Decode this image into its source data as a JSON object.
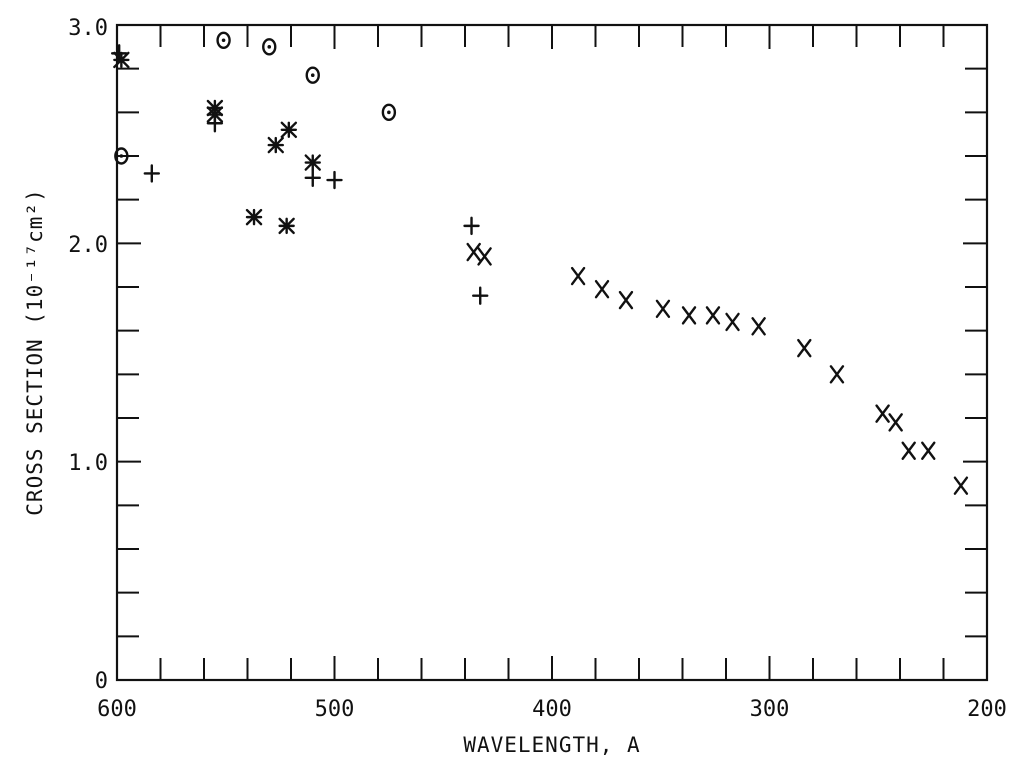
{
  "chart_data": {
    "type": "scatter",
    "title": "",
    "xlabel": "WAVELENGTH, A",
    "ylabel": "CROSS SECTION (10⁻¹⁷cm²)",
    "xlim": [
      600,
      200
    ],
    "ylim": [
      0,
      3.0
    ],
    "x_reversed": true,
    "grid": false,
    "x_major_ticks": [
      600,
      500,
      400,
      300,
      200
    ],
    "x_tick_labels": [
      "600",
      "500",
      "400",
      "300",
      "200"
    ],
    "x_minor_step": 20,
    "y_major_ticks": [
      0,
      1.0,
      2.0,
      3.0
    ],
    "y_tick_labels": [
      "0",
      "1.0",
      "2.0",
      "3.0"
    ],
    "y_minor_step": 0.2,
    "series": [
      {
        "marker": "circle-dot",
        "points": [
          [
            598,
            2.4
          ],
          [
            551,
            2.93
          ],
          [
            530,
            2.9
          ],
          [
            510,
            2.77
          ],
          [
            475,
            2.6
          ]
        ]
      },
      {
        "marker": "plus",
        "points": [
          [
            599,
            2.87
          ],
          [
            584,
            2.32
          ],
          [
            555,
            2.55
          ],
          [
            510,
            2.3
          ],
          [
            500,
            2.29
          ],
          [
            437,
            2.08
          ],
          [
            433,
            1.76
          ]
        ]
      },
      {
        "marker": "asterisk",
        "points": [
          [
            598,
            2.84
          ],
          [
            555,
            2.62
          ],
          [
            555,
            2.59
          ],
          [
            537,
            2.12
          ],
          [
            527,
            2.45
          ],
          [
            522,
            2.08
          ],
          [
            521,
            2.52
          ],
          [
            510,
            2.37
          ]
        ]
      },
      {
        "marker": "x",
        "points": [
          [
            436,
            1.96
          ],
          [
            431,
            1.94
          ],
          [
            388,
            1.85
          ],
          [
            377,
            1.79
          ],
          [
            366,
            1.74
          ],
          [
            349,
            1.7
          ],
          [
            337,
            1.67
          ],
          [
            326,
            1.67
          ],
          [
            317,
            1.64
          ],
          [
            305,
            1.62
          ],
          [
            284,
            1.52
          ],
          [
            269,
            1.4
          ],
          [
            248,
            1.22
          ],
          [
            242,
            1.18
          ],
          [
            236,
            1.05
          ],
          [
            227,
            1.05
          ],
          [
            212,
            0.89
          ]
        ]
      }
    ]
  }
}
